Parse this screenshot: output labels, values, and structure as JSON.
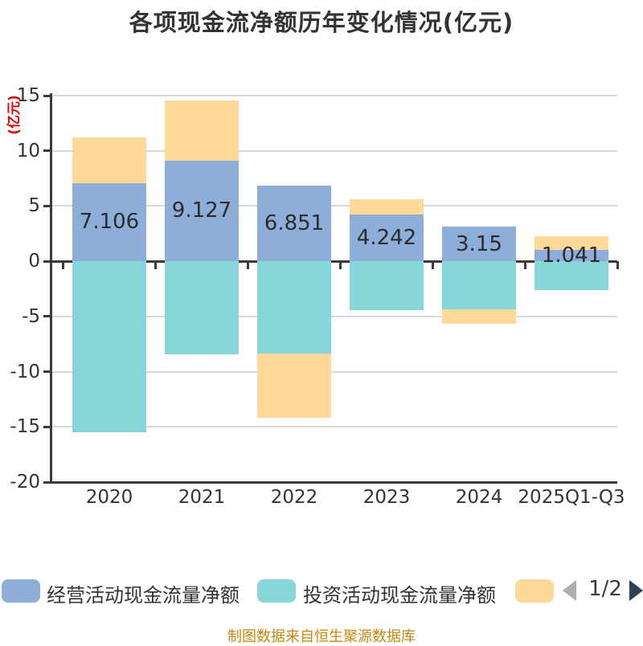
{
  "title": "各项现金流净额历年变化情况(亿元)",
  "y_axis": {
    "label": "(亿元)",
    "label_color": "#e60000",
    "ticks": [
      "15",
      "10",
      "5",
      "0",
      "-5",
      "-10",
      "-15",
      "-20"
    ],
    "max": 15,
    "min": -20
  },
  "chart_data": {
    "type": "bar",
    "stacked": true,
    "title": "各项现金流净额历年变化情况(亿元)",
    "ylabel": "(亿元)",
    "ylim": [
      -20,
      15
    ],
    "grid": true,
    "legend_position": "bottom",
    "categories": [
      "2020",
      "2021",
      "2022",
      "2023",
      "2024",
      "2025Q1-Q3"
    ],
    "series": [
      {
        "name": "经营活动现金流量净额",
        "color": "#8CAED8",
        "values": [
          7.106,
          9.127,
          6.851,
          4.242,
          3.15,
          1.041
        ]
      },
      {
        "name": "投资活动现金流量净额",
        "color": "#87D6D9",
        "values": [
          -15.5,
          -8.45,
          -8.35,
          -4.4,
          -4.35,
          -2.6
        ]
      },
      {
        "name": "",
        "color": "#FFD998",
        "values": [
          4.15,
          5.45,
          -5.8,
          1.4,
          -1.3,
          1.2
        ]
      }
    ],
    "bar_labels": [
      "7.106",
      "9.127",
      "6.851",
      "4.242",
      "3.15",
      "1.041"
    ]
  },
  "legend": {
    "items": [
      {
        "label": "经营活动现金流量净额",
        "color": "#8CAED8"
      },
      {
        "label": "投资活动现金流量净额",
        "color": "#87D6D9"
      },
      {
        "label": "",
        "color": "#FFD998"
      }
    ],
    "pagination": {
      "text": "1/2",
      "prev_icon": "left-arrow",
      "next_icon": "right-arrow",
      "prev_color": "#a8aeb4",
      "next_color": "#2e4154"
    }
  },
  "footer": {
    "source": "制图数据来自恒生聚源数据库",
    "color": "#c8860e"
  },
  "colors": {
    "text": "#333333",
    "axis": "#3a3a3a",
    "gridline": "#d8d8d8"
  }
}
